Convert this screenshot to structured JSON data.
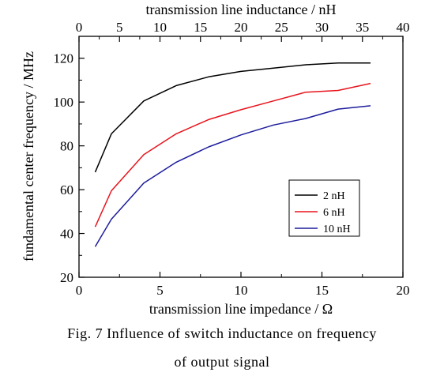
{
  "chart_data": {
    "type": "line",
    "xlabel": "transmission line impedance / Ω",
    "x2label": "transmission line inductance / nH",
    "ylabel": "fundamental center frequency / MHz",
    "xlim": [
      0,
      20
    ],
    "x2lim": [
      0,
      40
    ],
    "ylim": [
      20,
      130
    ],
    "xticks": [
      0,
      5,
      10,
      15,
      20
    ],
    "x2ticks": [
      0,
      5,
      10,
      15,
      20,
      25,
      30,
      35,
      40
    ],
    "yticks": [
      20,
      40,
      60,
      80,
      100,
      120
    ],
    "grid": false,
    "legend_position": "lower-right",
    "series": [
      {
        "name": "2 nH",
        "color": "#000000",
        "x": [
          1,
          2,
          4,
          6,
          8,
          10,
          12,
          14,
          16,
          18
        ],
        "y": [
          68,
          85.5,
          100.5,
          107.5,
          111.5,
          114,
          115.5,
          117,
          117.8,
          117.8
        ]
      },
      {
        "name": "6 nH",
        "color": "#e8141c",
        "x": [
          1,
          2,
          4,
          6,
          8,
          10,
          12,
          14,
          16,
          18
        ],
        "y": [
          43,
          59.5,
          76,
          85.5,
          92,
          96.5,
          100.5,
          104.5,
          105.3,
          108.5
        ]
      },
      {
        "name": "10 nH",
        "color": "#1c1c9c",
        "x": [
          1,
          2,
          4,
          6,
          8,
          10,
          12,
          14,
          16,
          18
        ],
        "y": [
          34,
          46.5,
          63,
          72.5,
          79.5,
          85,
          89.5,
          92.5,
          96.8,
          98.3
        ]
      }
    ]
  },
  "caption": {
    "line1": "Fig. 7    Influence of switch inductance on frequency",
    "line2": "of output signal"
  }
}
